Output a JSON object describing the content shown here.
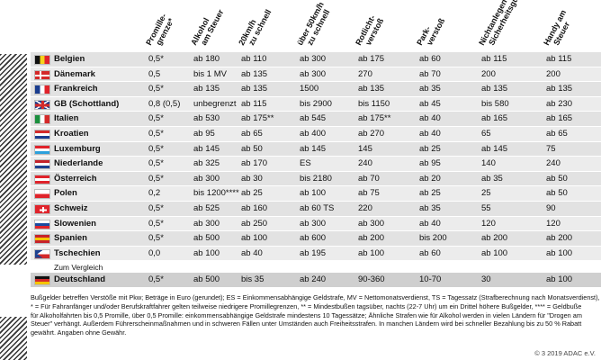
{
  "table": {
    "headers": [
      [
        "Promille-",
        "grenze*"
      ],
      [
        "Alkohol",
        "am Steuer"
      ],
      [
        "20km/h",
        "zu schnell"
      ],
      [
        "über 50km/h",
        "zu schnell"
      ],
      [
        "Rotlicht-",
        "verstoß"
      ],
      [
        "Park-",
        "verstoß"
      ],
      [
        "Nichtanlegen",
        "Sicherheitsgurt"
      ],
      [
        "Handy am",
        "Steuer"
      ]
    ],
    "rows": [
      {
        "country": "Belgien",
        "values": [
          "0,5*",
          "ab 180",
          "ab 110",
          "ab 300",
          "ab 175",
          "ab 60",
          "ab 115",
          "ab 115"
        ]
      },
      {
        "country": "Dänemark",
        "values": [
          "0,5",
          "bis 1 MV",
          "ab 135",
          "ab 300",
          "270",
          "ab 70",
          "200",
          "200"
        ]
      },
      {
        "country": "Frankreich",
        "values": [
          "0,5*",
          "ab 135",
          "ab 135",
          "1500",
          "ab 135",
          "ab 35",
          "ab 135",
          "ab 135"
        ]
      },
      {
        "country": "GB (Schottland)",
        "values": [
          "0,8 (0,5)",
          "unbegrenzt",
          "ab 115",
          "bis 2900",
          "bis 1150",
          "ab 45",
          "bis 580",
          "ab 230"
        ]
      },
      {
        "country": "Italien",
        "values": [
          "0,5*",
          "ab 530",
          "ab 175**",
          "ab 545",
          "ab 175**",
          "ab 40",
          "ab 165",
          "ab 165"
        ]
      },
      {
        "country": "Kroatien",
        "values": [
          "0,5*",
          "ab 95",
          "ab 65",
          "ab 400",
          "ab 270",
          "ab 40",
          "65",
          "ab 65"
        ]
      },
      {
        "country": "Luxemburg",
        "values": [
          "0,5*",
          "ab 145",
          "ab 50",
          "ab 145",
          "145",
          "ab 25",
          "ab 145",
          "75"
        ]
      },
      {
        "country": "Niederlande",
        "values": [
          "0,5*",
          "ab 325",
          "ab 170",
          "ES",
          "240",
          "ab 95",
          "140",
          "240"
        ]
      },
      {
        "country": "Österreich",
        "values": [
          "0,5*",
          "ab 300",
          "ab 30",
          "bis 2180",
          "ab 70",
          "ab 20",
          "ab 35",
          "ab 50"
        ]
      },
      {
        "country": "Polen",
        "values": [
          "0,2",
          "bis 1200****",
          "ab 25",
          "ab 100",
          "ab 75",
          "ab 25",
          "25",
          "ab 50"
        ]
      },
      {
        "country": "Schweiz",
        "values": [
          "0,5*",
          "ab 525",
          "ab 160",
          "ab 60 TS",
          "220",
          "ab 35",
          "55",
          "90"
        ]
      },
      {
        "country": "Slowenien",
        "values": [
          "0,5*",
          "ab 300",
          "ab 250",
          "ab 300",
          "ab 300",
          "ab 40",
          "120",
          "120"
        ]
      },
      {
        "country": "Spanien",
        "values": [
          "0,5*",
          "ab 500",
          "ab 100",
          "ab 600",
          "ab 200",
          "bis 200",
          "ab 200",
          "ab 200"
        ]
      },
      {
        "country": "Tschechien",
        "values": [
          "0,0",
          "ab 100",
          "ab 40",
          "ab 195",
          "ab 100",
          "ab 60",
          "ab 100",
          "ab 100"
        ]
      }
    ],
    "comparison_label": "Zum Vergleich",
    "comparison": {
      "country": "Deutschland",
      "values": [
        "0,5*",
        "ab 500",
        "bis 35",
        "ab 240",
        "90-360",
        "10-70",
        "30",
        "ab 100"
      ]
    }
  },
  "footnote": [
    "Bußgelder betreffen Verstöße mit Pkw; Beträge in Euro (gerundet); ES = Einkommensabhängige Geldstrafe, MV = Nettomonatsverdienst, TS = Tagessatz (Strafberechnung nach Monatsverdienst),",
    "* = Für Fahranfänger und/oder Berufskraftfahrer gelten teilweise niedrigere Promillegrenzen, ** = Mindestbußen tagsüber, nachts (22-7 Uhr) um ein Drittel höhere Bußgelder, **** = Geldbuße",
    "für Alkoholfahrten bis 0,5 Promille, über 0,5 Promille: einkommensabhängige Geldstrafe mindestens 10 Tagessätze; Ähnliche Strafen wie für Alkohol werden in vielen Ländern für \"Drogen am",
    "Steuer\" verhängt. Außerdem Führerscheinmaßnahmen und in schweren Fällen unter Umständen auch Freiheitsstrafen. In manchen Ländern wird bei schneller Bezahlung bis zu 50 % Rabatt",
    "gewährt. Angaben ohne Gewähr."
  ],
  "copyright": "© 3 2019 ADAC e.V."
}
